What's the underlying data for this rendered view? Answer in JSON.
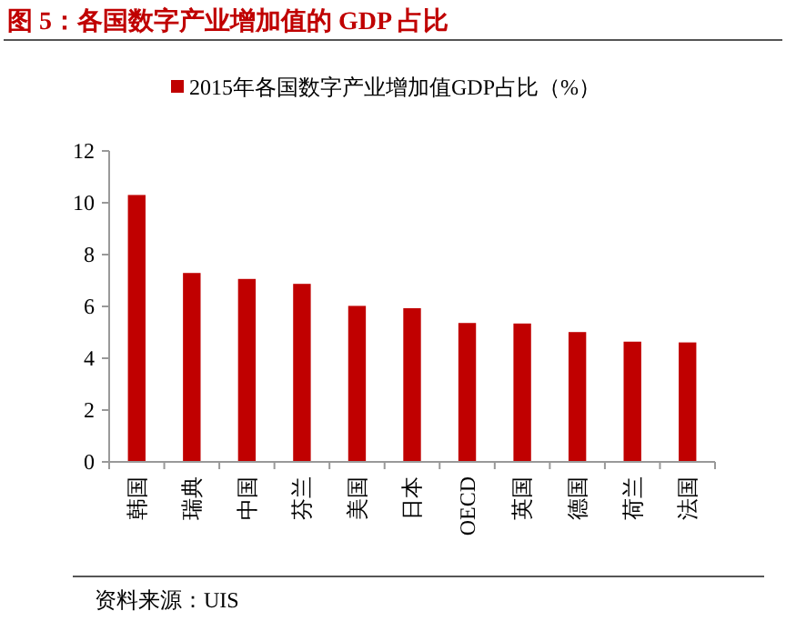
{
  "chart_data": {
    "type": "bar",
    "title": "图 5：各国数字产业增加值的 GDP 占比",
    "categories": [
      "韩国",
      "瑞典",
      "中国",
      "芬兰",
      "美国",
      "日本",
      "OECD",
      "英国",
      "德国",
      "荷兰",
      "法国"
    ],
    "series": [
      {
        "name": "2015年各国数字产业增加值GDP占比（%）",
        "color": "#c00000",
        "values": [
          10.3,
          7.29,
          7.06,
          6.87,
          6.02,
          5.93,
          5.36,
          5.34,
          5.01,
          4.64,
          4.61
        ]
      }
    ],
    "ylim": [
      0,
      12
    ],
    "yticks": [
      0,
      2,
      4,
      6,
      8,
      10,
      12
    ],
    "grid": false,
    "legend": "top left",
    "annotations": [
      "资料来源：UIS"
    ]
  }
}
